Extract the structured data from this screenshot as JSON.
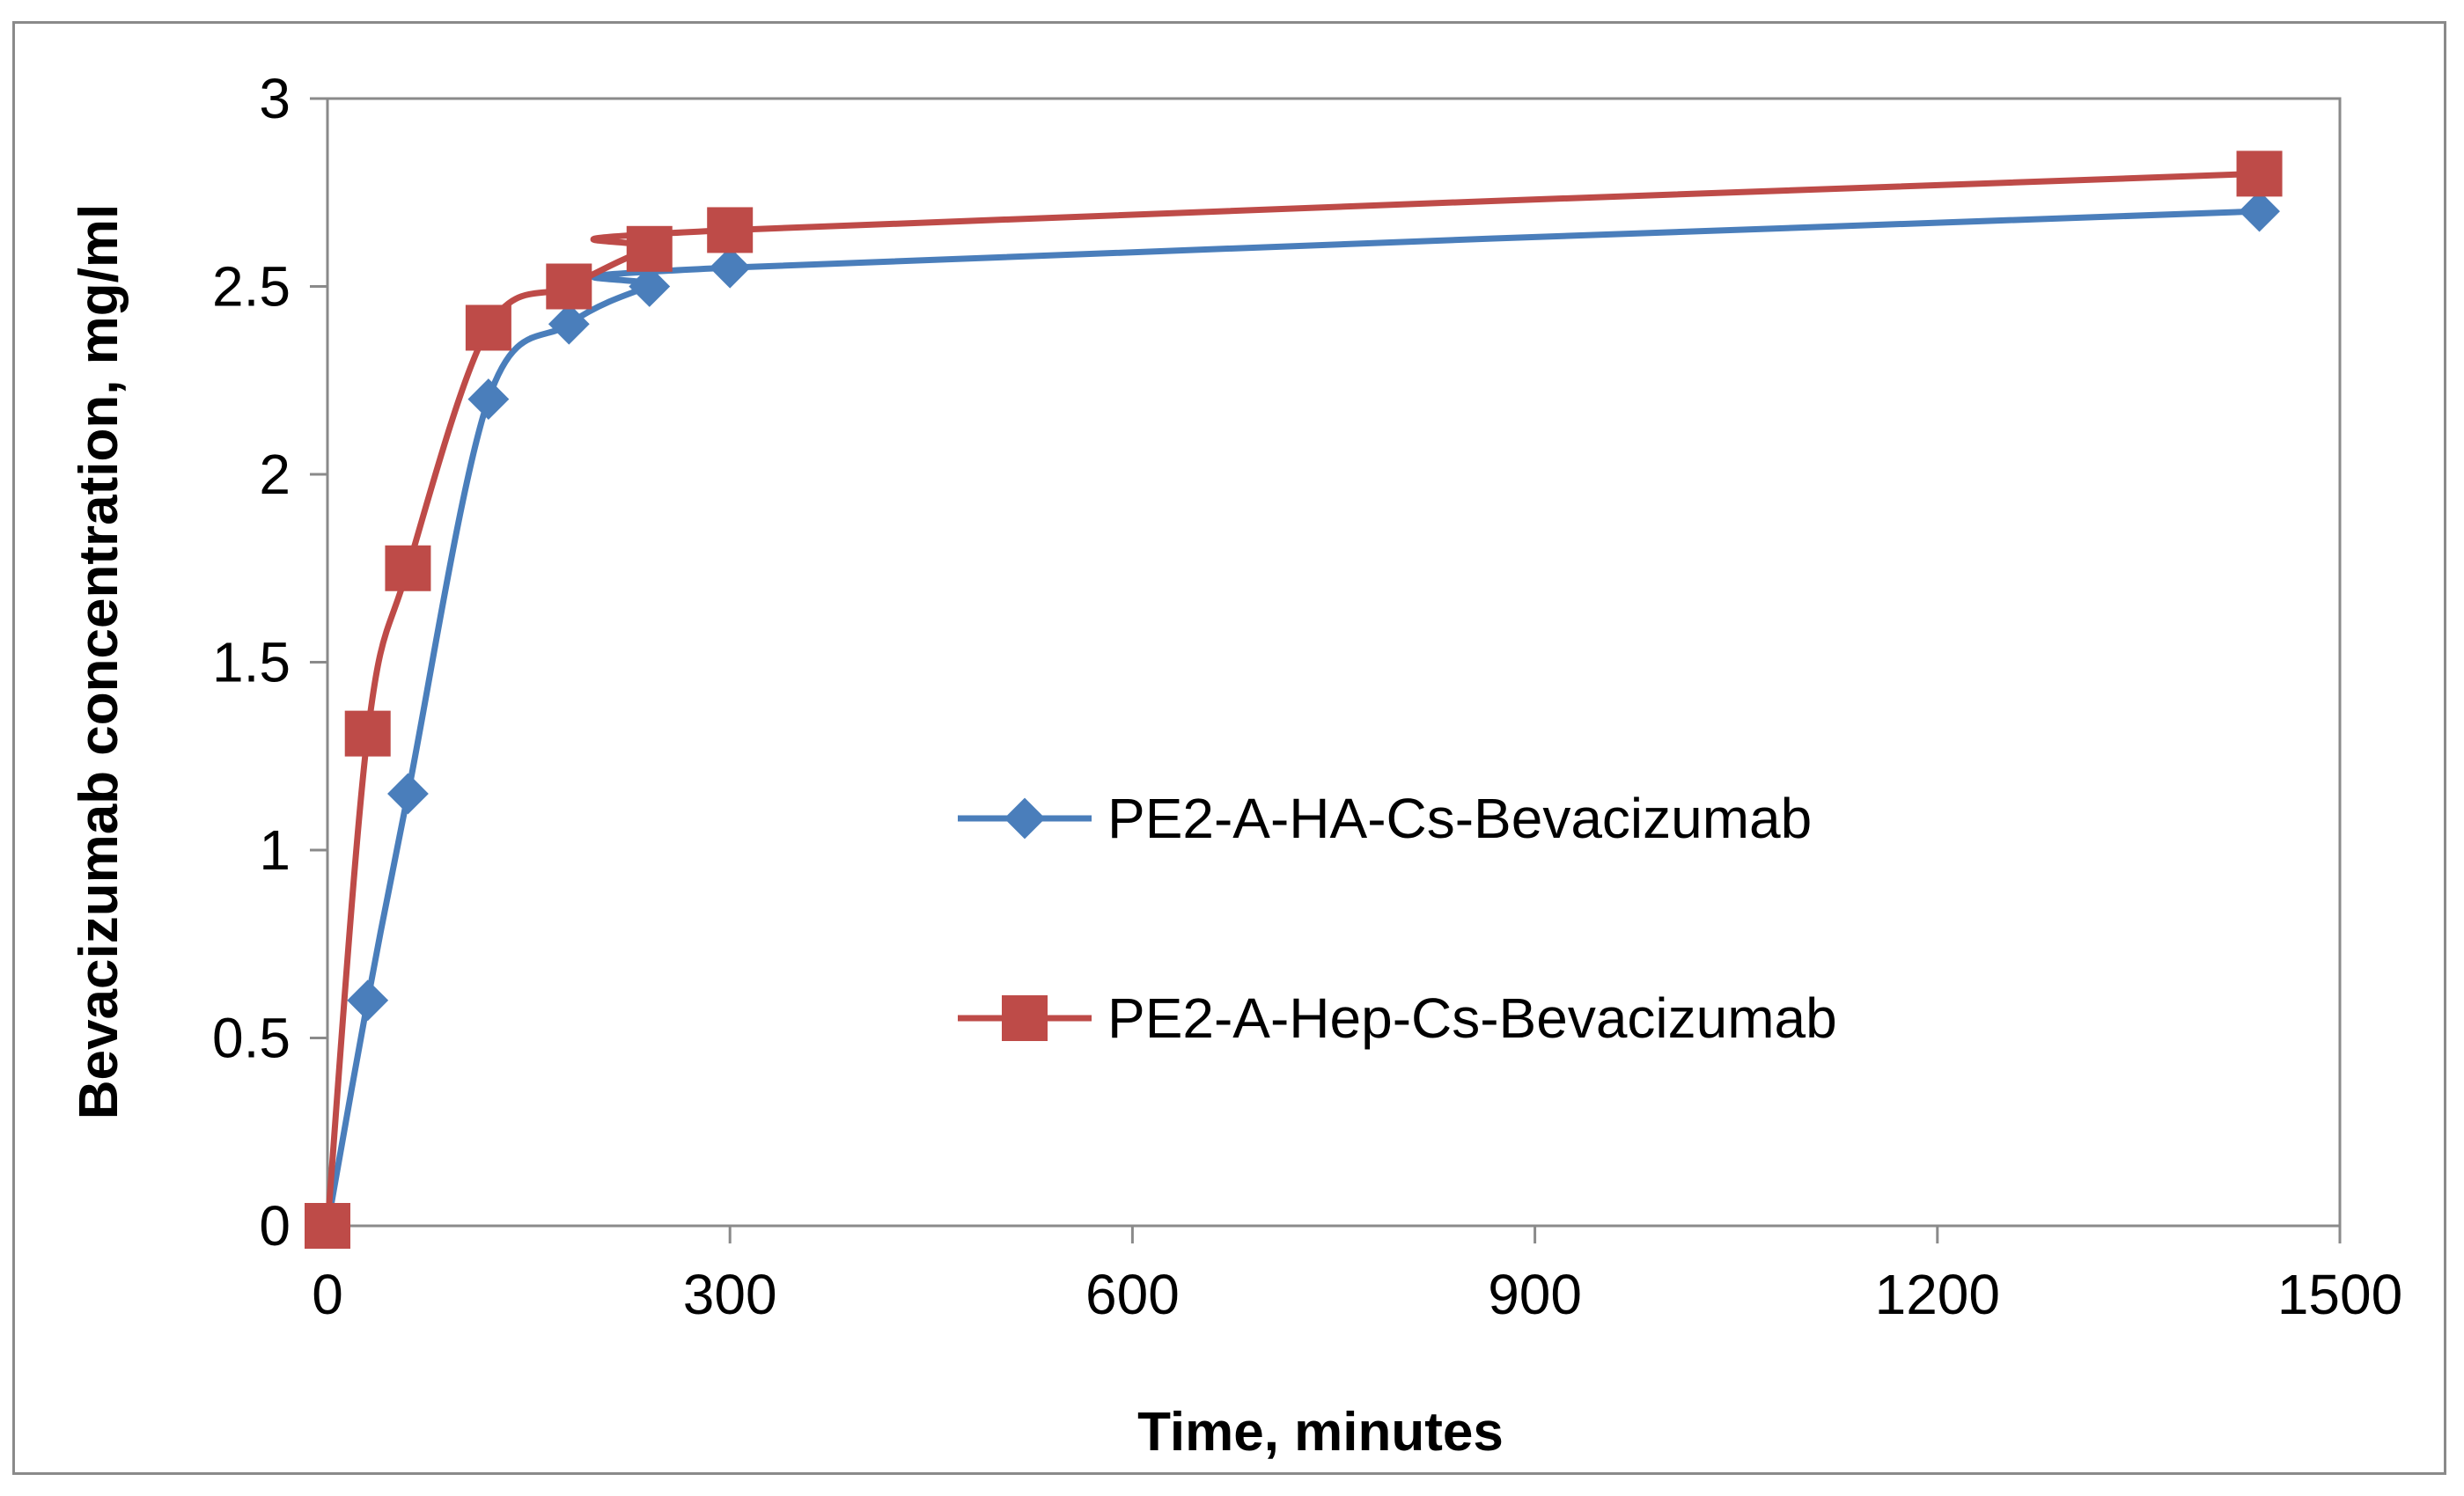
{
  "chart_data": {
    "type": "line",
    "title": "",
    "xlabel": "Time, minutes",
    "ylabel": "Bevacizumab concentration, mg/ml",
    "xlim": [
      0,
      1500
    ],
    "ylim": [
      0,
      3
    ],
    "x_ticks": [
      0,
      300,
      600,
      900,
      1200,
      1500
    ],
    "y_ticks": [
      0,
      0.5,
      1,
      1.5,
      2,
      2.5,
      3
    ],
    "x_tick_labels": [
      "0",
      "300",
      "600",
      "900",
      "1200",
      "1500"
    ],
    "y_tick_labels": [
      "0",
      "0.5",
      "1",
      "1.5",
      "2",
      "2.5",
      "3"
    ],
    "grid": false,
    "smooth": true,
    "legend_position": "center-right",
    "series": [
      {
        "name": "PE2-A-HA-Cs-Bevacizumab",
        "color": "#4a7ebb",
        "marker": "diamond",
        "x": [
          0,
          30,
          60,
          120,
          180,
          240,
          300,
          1440
        ],
        "y": [
          0,
          0.6,
          1.15,
          2.2,
          2.4,
          2.5,
          2.55,
          2.7
        ]
      },
      {
        "name": "PE2-A-Hep-Cs-Bevacizumab",
        "color": "#be4b48",
        "marker": "square",
        "x": [
          0,
          30,
          60,
          120,
          180,
          240,
          300,
          1440
        ],
        "y": [
          0,
          1.31,
          1.75,
          2.39,
          2.5,
          2.6,
          2.65,
          2.8
        ]
      }
    ]
  }
}
